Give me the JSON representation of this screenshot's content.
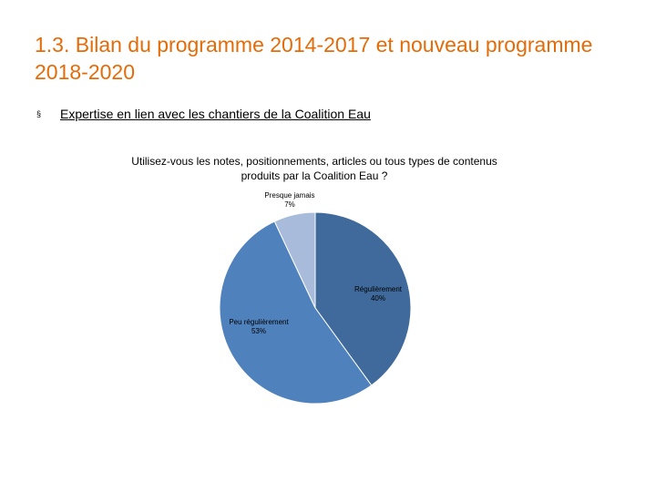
{
  "slide": {
    "title": "1.3. Bilan du programme 2014-2017 et nouveau programme 2018-2020",
    "bullet_icon": "§",
    "bullet_text": "Expertise en lien avec les chantiers de la Coalition Eau"
  },
  "chart_data": {
    "type": "pie",
    "title": "Utilisez-vous les notes, positionnements, articles ou tous types de contenus produits par la Coalition Eau ?",
    "slices": [
      {
        "label": "Régulièrement",
        "value": 40,
        "value_label": "40%",
        "color": "#3F6A9B"
      },
      {
        "label": "Peu régulièrement",
        "value": 53,
        "value_label": "53%",
        "color": "#4F81BD"
      },
      {
        "label": "Presque jamais",
        "value": 7,
        "value_label": "7%",
        "color": "#A9BBDA"
      }
    ]
  }
}
